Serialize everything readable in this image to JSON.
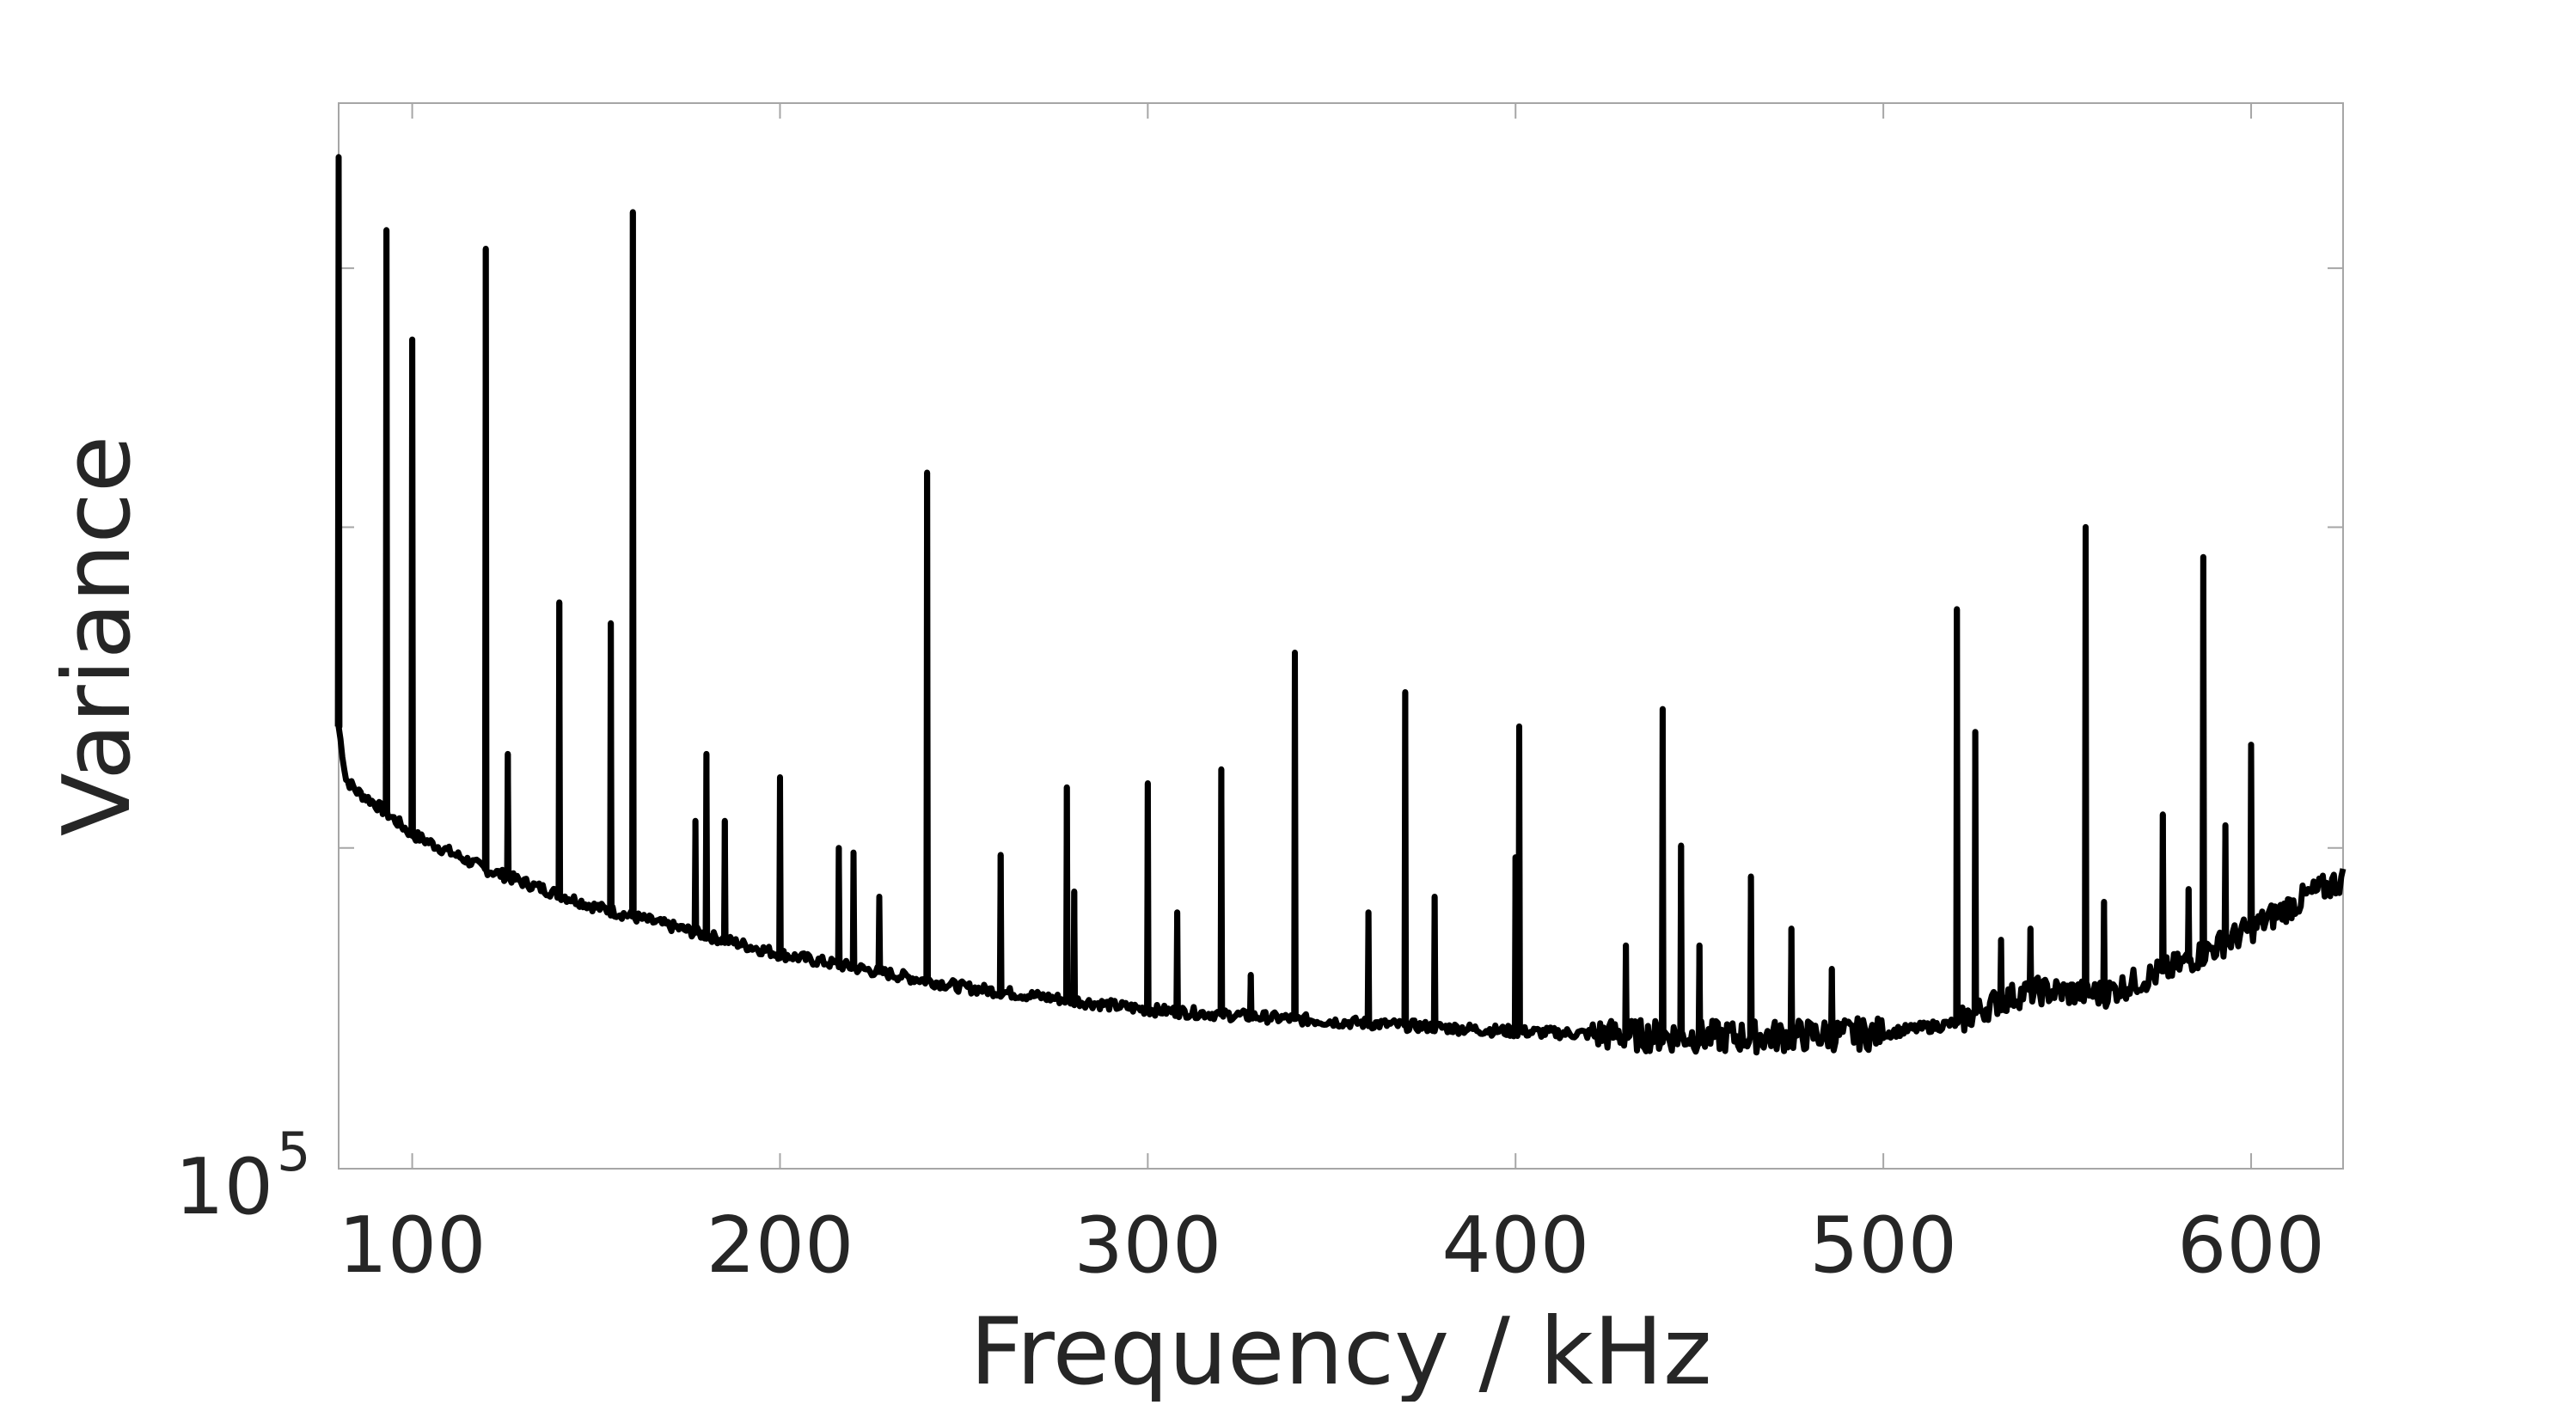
{
  "chart_data": {
    "type": "line",
    "title": "",
    "xlabel": "Frequency / kHz",
    "ylabel": "Variance",
    "xlim": [
      80,
      625
    ],
    "x_ticks": [
      100,
      200,
      300,
      400,
      500,
      600
    ],
    "x_tick_labels": [
      "100",
      "200",
      "300",
      "400",
      "500",
      "600"
    ],
    "y_scale": "log",
    "y_tick_label": {
      "base": "10",
      "exponent": "5"
    },
    "grid": false,
    "legend": "none",
    "line_color": "#000000",
    "baseline": {
      "x": [
        80,
        82,
        85,
        90,
        100,
        120,
        150,
        200,
        250,
        300,
        350,
        400,
        430,
        460,
        500,
        520,
        530,
        540,
        560,
        580,
        600,
        615,
        625
      ],
      "y": [
        260,
        232,
        226,
        220,
        206,
        191,
        176,
        159,
        148,
        141,
        137.5,
        134.5,
        133.5,
        133,
        134,
        137,
        143,
        147,
        146,
        155,
        168,
        180,
        187
      ]
    },
    "peaks": [
      {
        "x": 80,
        "y": 890
      },
      {
        "x": 93,
        "y": 760
      },
      {
        "x": 100,
        "y": 600
      },
      {
        "x": 120,
        "y": 730
      },
      {
        "x": 126,
        "y": 245
      },
      {
        "x": 140,
        "y": 340
      },
      {
        "x": 154,
        "y": 325
      },
      {
        "x": 160,
        "y": 790
      },
      {
        "x": 177,
        "y": 212
      },
      {
        "x": 180,
        "y": 245
      },
      {
        "x": 185,
        "y": 212
      },
      {
        "x": 200,
        "y": 233
      },
      {
        "x": 216,
        "y": 200
      },
      {
        "x": 220,
        "y": 198
      },
      {
        "x": 227,
        "y": 180
      },
      {
        "x": 240,
        "y": 450
      },
      {
        "x": 260,
        "y": 197
      },
      {
        "x": 278,
        "y": 228
      },
      {
        "x": 280,
        "y": 182
      },
      {
        "x": 300,
        "y": 230
      },
      {
        "x": 308,
        "y": 174
      },
      {
        "x": 320,
        "y": 237
      },
      {
        "x": 328,
        "y": 152
      },
      {
        "x": 340,
        "y": 305
      },
      {
        "x": 360,
        "y": 174
      },
      {
        "x": 370,
        "y": 280
      },
      {
        "x": 378,
        "y": 180
      },
      {
        "x": 400,
        "y": 196
      },
      {
        "x": 401,
        "y": 260
      },
      {
        "x": 430,
        "y": 162
      },
      {
        "x": 440,
        "y": 270
      },
      {
        "x": 445,
        "y": 201
      },
      {
        "x": 450,
        "y": 162
      },
      {
        "x": 464,
        "y": 188
      },
      {
        "x": 475,
        "y": 168
      },
      {
        "x": 486,
        "y": 154
      },
      {
        "x": 520,
        "y": 335
      },
      {
        "x": 525,
        "y": 257
      },
      {
        "x": 532,
        "y": 164
      },
      {
        "x": 540,
        "y": 168
      },
      {
        "x": 555,
        "y": 400
      },
      {
        "x": 560,
        "y": 178
      },
      {
        "x": 576,
        "y": 215
      },
      {
        "x": 583,
        "y": 183
      },
      {
        "x": 587,
        "y": 375
      },
      {
        "x": 593,
        "y": 210
      },
      {
        "x": 600,
        "y": 250
      }
    ]
  }
}
